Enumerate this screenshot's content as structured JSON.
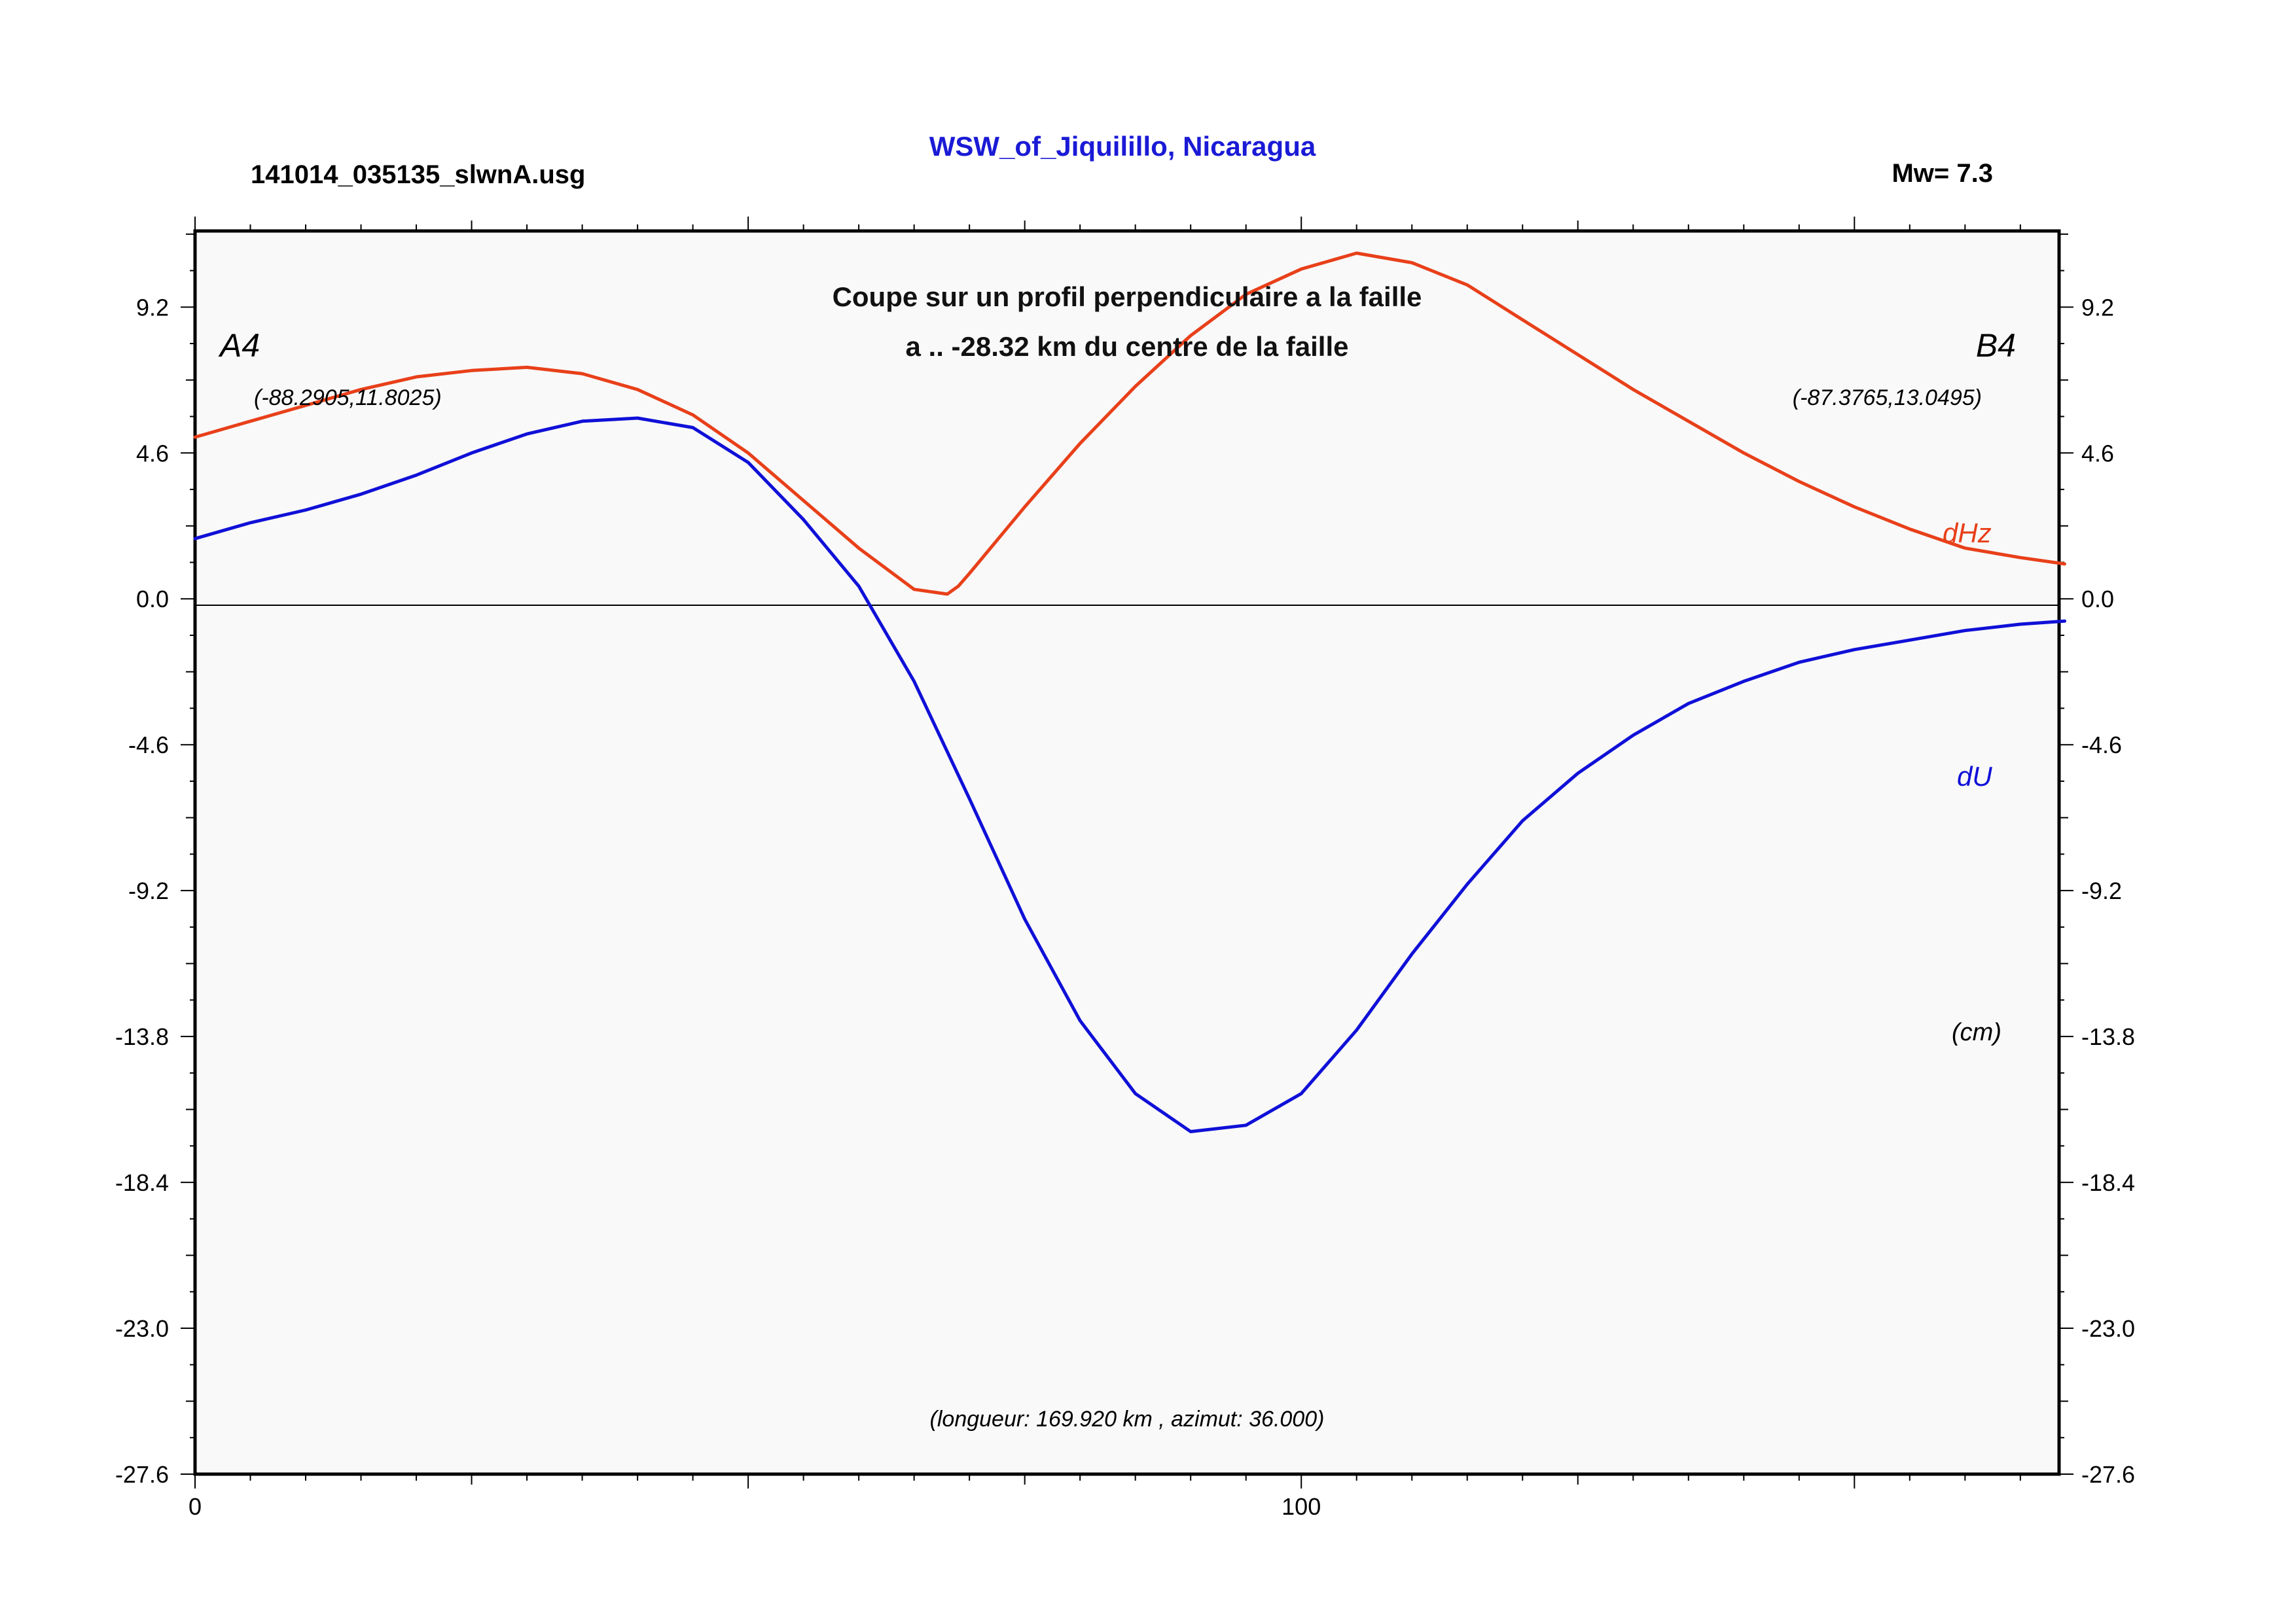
{
  "header": {
    "filename": "141014_035135_slwnA.usg",
    "location": "WSW_of_Jiquilillo, Nicaragua",
    "magnitude": "Mw= 7.3"
  },
  "plot": {
    "subtitle_line1": "Coupe sur un profil perpendiculaire a la faille",
    "subtitle_line2": "a .. -28.32 km du centre de la faille",
    "left_point_label": "A4",
    "left_point_coords": "(-88.2905,11.8025)",
    "right_point_label": "B4",
    "right_point_coords": "(-87.3765,13.0495)",
    "footer_note": "(longueur: 169.920 km , azimut: 36.000)",
    "unit_label": "(cm)",
    "label_dHz": "dHz",
    "label_dU": "dU",
    "background_color": "#f9f9f9",
    "title_color": "#1a1ad6"
  },
  "chart_data": {
    "type": "line",
    "xlim": [
      0,
      169.92
    ],
    "ylim": [
      -27.6,
      11.6
    ],
    "x_ticks": [
      "0",
      "100"
    ],
    "y_ticks": [
      "9.2",
      "4.6",
      "0.0",
      "-4.6",
      "-9.2",
      "-13.8",
      "-18.4",
      "-23.0",
      "-27.6"
    ],
    "series": [
      {
        "name": "dHz",
        "color": "#e8401a",
        "x": [
          0,
          5,
          10,
          15,
          20,
          25,
          30,
          35,
          40,
          45,
          50,
          55,
          60,
          65,
          68,
          69,
          70,
          75,
          80,
          85,
          90,
          95,
          100,
          105,
          110,
          115,
          120,
          125,
          130,
          135,
          140,
          145,
          150,
          155,
          160,
          165,
          169
        ],
        "y": [
          5.1,
          5.6,
          6.1,
          6.6,
          7.0,
          7.2,
          7.3,
          7.1,
          6.6,
          5.8,
          4.6,
          3.1,
          1.6,
          0.3,
          0.15,
          0.4,
          0.8,
          2.9,
          4.9,
          6.7,
          8.3,
          9.6,
          10.4,
          10.9,
          10.6,
          9.9,
          8.8,
          7.7,
          6.6,
          5.6,
          4.6,
          3.7,
          2.9,
          2.2,
          1.6,
          1.3,
          1.1
        ]
      },
      {
        "name": "dU",
        "color": "#1010d8",
        "x": [
          0,
          5,
          10,
          15,
          20,
          25,
          30,
          35,
          40,
          45,
          50,
          55,
          60,
          65,
          70,
          75,
          80,
          85,
          90,
          95,
          100,
          105,
          110,
          115,
          120,
          125,
          130,
          135,
          140,
          145,
          150,
          155,
          160,
          165,
          169
        ],
        "y": [
          1.9,
          2.4,
          2.8,
          3.3,
          3.9,
          4.6,
          5.2,
          5.6,
          5.7,
          5.4,
          4.3,
          2.5,
          0.4,
          -2.6,
          -6.3,
          -10.1,
          -13.3,
          -15.6,
          -16.8,
          -16.6,
          -15.6,
          -13.6,
          -11.2,
          -9.0,
          -7.0,
          -5.5,
          -4.3,
          -3.3,
          -2.6,
          -2.0,
          -1.6,
          -1.3,
          -1.0,
          -0.8,
          -0.7
        ]
      }
    ]
  }
}
